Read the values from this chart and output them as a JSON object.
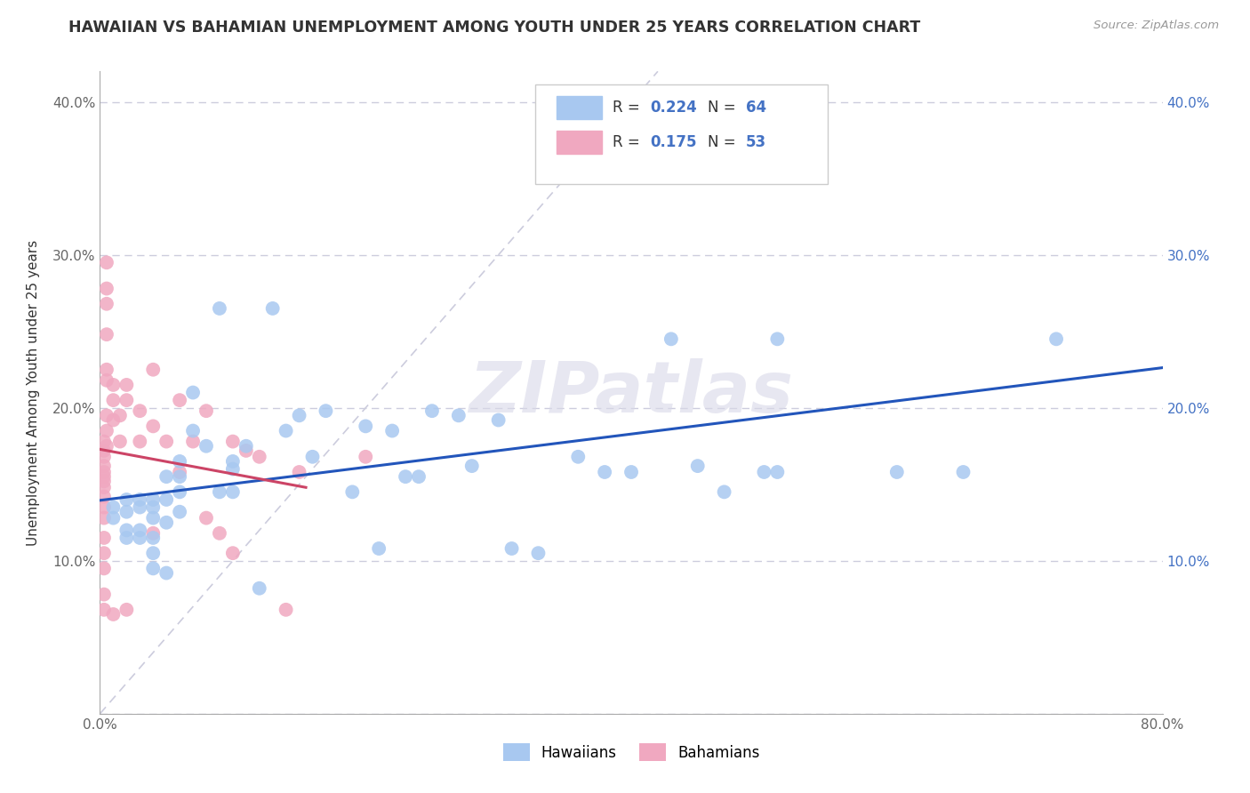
{
  "title": "HAWAIIAN VS BAHAMIAN UNEMPLOYMENT AMONG YOUTH UNDER 25 YEARS CORRELATION CHART",
  "source": "Source: ZipAtlas.com",
  "ylabel": "Unemployment Among Youth under 25 years",
  "xlim": [
    0.0,
    0.8
  ],
  "ylim": [
    0.0,
    0.42
  ],
  "xticks": [
    0.0,
    0.1,
    0.2,
    0.3,
    0.4,
    0.5,
    0.6,
    0.7,
    0.8
  ],
  "xticklabels": [
    "0.0%",
    "",
    "",
    "",
    "",
    "",
    "",
    "",
    "80.0%"
  ],
  "yticks": [
    0.0,
    0.1,
    0.2,
    0.3,
    0.4
  ],
  "yleft_labels": [
    "",
    "10.0%",
    "20.0%",
    "30.0%",
    "40.0%"
  ],
  "yright_labels": [
    "",
    "10.0%",
    "20.0%",
    "30.0%",
    "40.0%"
  ],
  "hawaiian_R": "0.224",
  "hawaiian_N": "64",
  "bahamian_R": "0.175",
  "bahamian_N": "53",
  "hawaiian_color": "#a8c8f0",
  "bahamian_color": "#f0a8c0",
  "hawaiian_line_color": "#2255bb",
  "bahamian_line_color": "#cc4466",
  "grid_color": "#ccccdd",
  "diag_color": "#ccccdd",
  "watermark": "ZIPatlas",
  "hawaiian_x": [
    0.01,
    0.01,
    0.02,
    0.02,
    0.02,
    0.02,
    0.03,
    0.03,
    0.03,
    0.03,
    0.04,
    0.04,
    0.04,
    0.04,
    0.04,
    0.04,
    0.05,
    0.05,
    0.05,
    0.05,
    0.06,
    0.06,
    0.06,
    0.06,
    0.07,
    0.07,
    0.08,
    0.09,
    0.09,
    0.1,
    0.1,
    0.1,
    0.11,
    0.12,
    0.13,
    0.14,
    0.15,
    0.16,
    0.17,
    0.19,
    0.2,
    0.21,
    0.22,
    0.23,
    0.24,
    0.25,
    0.27,
    0.28,
    0.3,
    0.31,
    0.33,
    0.36,
    0.38,
    0.4,
    0.43,
    0.45,
    0.47,
    0.48,
    0.5,
    0.51,
    0.51,
    0.6,
    0.65,
    0.72
  ],
  "hawaiian_y": [
    0.135,
    0.128,
    0.14,
    0.132,
    0.12,
    0.115,
    0.14,
    0.135,
    0.12,
    0.115,
    0.14,
    0.135,
    0.128,
    0.115,
    0.105,
    0.095,
    0.155,
    0.14,
    0.125,
    0.092,
    0.165,
    0.155,
    0.145,
    0.132,
    0.21,
    0.185,
    0.175,
    0.265,
    0.145,
    0.165,
    0.16,
    0.145,
    0.175,
    0.082,
    0.265,
    0.185,
    0.195,
    0.168,
    0.198,
    0.145,
    0.188,
    0.108,
    0.185,
    0.155,
    0.155,
    0.198,
    0.195,
    0.162,
    0.192,
    0.108,
    0.105,
    0.168,
    0.158,
    0.158,
    0.245,
    0.162,
    0.145,
    0.358,
    0.158,
    0.158,
    0.245,
    0.158,
    0.158,
    0.245
  ],
  "bahamian_x": [
    0.003,
    0.003,
    0.003,
    0.003,
    0.003,
    0.003,
    0.003,
    0.003,
    0.003,
    0.003,
    0.003,
    0.003,
    0.003,
    0.003,
    0.003,
    0.003,
    0.005,
    0.005,
    0.005,
    0.005,
    0.005,
    0.005,
    0.005,
    0.005,
    0.005,
    0.01,
    0.01,
    0.01,
    0.01,
    0.015,
    0.015,
    0.02,
    0.02,
    0.02,
    0.03,
    0.03,
    0.04,
    0.04,
    0.04,
    0.05,
    0.06,
    0.06,
    0.07,
    0.08,
    0.08,
    0.09,
    0.1,
    0.1,
    0.11,
    0.12,
    0.14,
    0.15,
    0.2
  ],
  "bahamian_y": [
    0.178,
    0.172,
    0.168,
    0.162,
    0.158,
    0.155,
    0.152,
    0.148,
    0.142,
    0.135,
    0.128,
    0.115,
    0.105,
    0.095,
    0.078,
    0.068,
    0.295,
    0.278,
    0.268,
    0.248,
    0.225,
    0.218,
    0.195,
    0.185,
    0.175,
    0.215,
    0.205,
    0.192,
    0.065,
    0.195,
    0.178,
    0.215,
    0.205,
    0.068,
    0.198,
    0.178,
    0.225,
    0.188,
    0.118,
    0.178,
    0.205,
    0.158,
    0.178,
    0.198,
    0.128,
    0.118,
    0.178,
    0.105,
    0.172,
    0.168,
    0.068,
    0.158,
    0.168
  ]
}
